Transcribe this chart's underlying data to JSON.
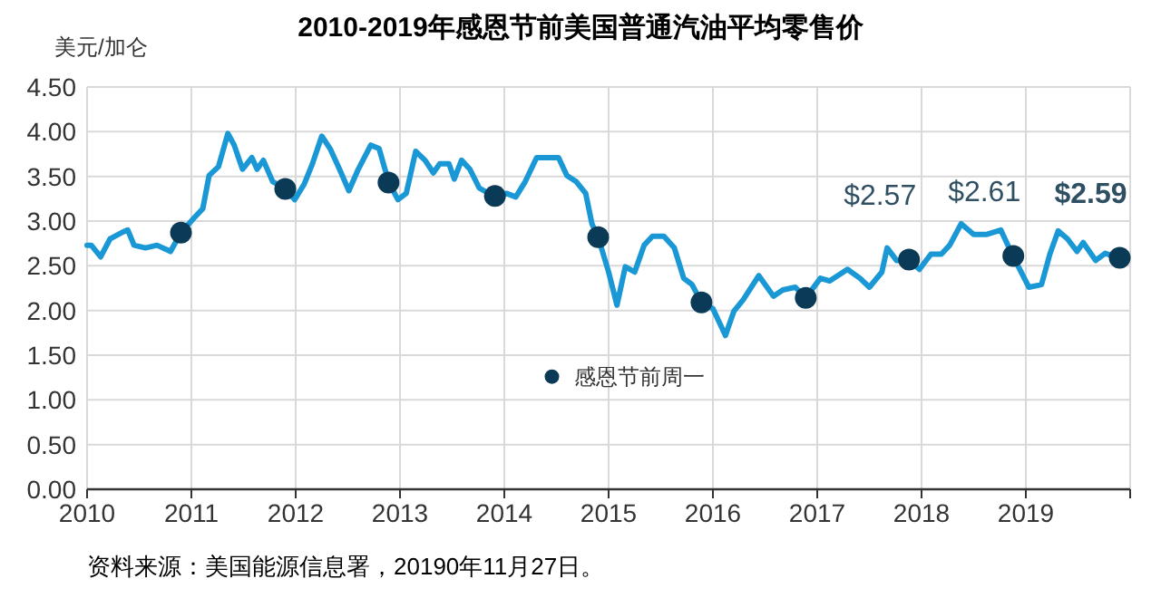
{
  "chart_data": {
    "type": "line",
    "title": "2010-2019年感恩节前美国普通汽油平均零售价",
    "ylabel": "美元/加仑",
    "annotations": [
      "资料来源：美国能源信息署，20190年11月27日。"
    ],
    "xlim": [
      2010,
      2020
    ],
    "xticks": [
      2010,
      2011,
      2012,
      2013,
      2014,
      2015,
      2016,
      2017,
      2018,
      2019,
      {
        "value": 2020,
        "label": null
      }
    ],
    "ylim": [
      0,
      4.5
    ],
    "yticks": [
      {
        "value": 0,
        "label": "0.00"
      },
      {
        "value": 0.5,
        "label": "0.50"
      },
      {
        "value": 1,
        "label": "1.00"
      },
      {
        "value": 1.5,
        "label": "1.50"
      },
      {
        "value": 2,
        "label": "2.00"
      },
      {
        "value": 2.5,
        "label": "2.50"
      },
      {
        "value": 3,
        "label": "3.00"
      },
      {
        "value": 3.5,
        "label": "3.50"
      },
      {
        "value": 4,
        "label": "4.00"
      },
      {
        "value": 4.5,
        "label": "4.50"
      }
    ],
    "grid": true,
    "legend": "bottom",
    "series": [
      {
        "color": "#1a98d5",
        "x": [
          2010.0,
          2010.04,
          2010.13,
          2010.22,
          2010.33,
          2010.39,
          2010.45,
          2010.56,
          2010.67,
          2010.8,
          2010.9,
          2011.03,
          2011.11,
          2011.17,
          2011.26,
          2011.35,
          2011.41,
          2011.49,
          2011.58,
          2011.63,
          2011.69,
          2011.78,
          2011.9,
          2011.99,
          2012.08,
          2012.16,
          2012.25,
          2012.33,
          2012.42,
          2012.51,
          2012.6,
          2012.72,
          2012.8,
          2012.89,
          2012.98,
          2013.06,
          2013.15,
          2013.24,
          2013.32,
          2013.38,
          2013.47,
          2013.52,
          2013.59,
          2013.67,
          2013.76,
          2013.91,
          2014.02,
          2014.11,
          2014.2,
          2014.31,
          2014.43,
          2014.52,
          2014.6,
          2014.69,
          2014.78,
          2014.84,
          2014.9,
          2015.0,
          2015.08,
          2015.16,
          2015.25,
          2015.34,
          2015.42,
          2015.53,
          2015.63,
          2015.72,
          2015.8,
          2015.89,
          2016.0,
          2016.12,
          2016.2,
          2016.29,
          2016.44,
          2016.58,
          2016.67,
          2016.79,
          2016.89,
          2017.03,
          2017.12,
          2017.29,
          2017.41,
          2017.5,
          2017.62,
          2017.67,
          2017.76,
          2017.88,
          2017.98,
          2018.09,
          2018.19,
          2018.27,
          2018.38,
          2018.5,
          2018.62,
          2018.76,
          2018.88,
          2019.03,
          2019.15,
          2019.23,
          2019.31,
          2019.4,
          2019.49,
          2019.55,
          2019.67,
          2019.76,
          2019.9
        ],
        "values": [
          2.73,
          2.73,
          2.6,
          2.8,
          2.87,
          2.9,
          2.73,
          2.7,
          2.73,
          2.66,
          2.87,
          3.04,
          3.14,
          3.51,
          3.61,
          3.98,
          3.85,
          3.58,
          3.71,
          3.58,
          3.68,
          3.44,
          3.37,
          3.24,
          3.41,
          3.64,
          3.95,
          3.81,
          3.58,
          3.34,
          3.58,
          3.85,
          3.81,
          3.44,
          3.24,
          3.31,
          3.78,
          3.68,
          3.54,
          3.64,
          3.64,
          3.47,
          3.68,
          3.58,
          3.37,
          3.27,
          3.31,
          3.27,
          3.44,
          3.71,
          3.71,
          3.71,
          3.51,
          3.44,
          3.31,
          2.97,
          2.82,
          2.43,
          2.06,
          2.49,
          2.43,
          2.73,
          2.83,
          2.83,
          2.7,
          2.36,
          2.29,
          2.09,
          2.02,
          1.72,
          1.99,
          2.12,
          2.39,
          2.16,
          2.23,
          2.26,
          2.14,
          2.36,
          2.33,
          2.46,
          2.36,
          2.26,
          2.43,
          2.7,
          2.56,
          2.56,
          2.46,
          2.63,
          2.63,
          2.73,
          2.97,
          2.85,
          2.85,
          2.9,
          2.6,
          2.26,
          2.29,
          2.63,
          2.89,
          2.8,
          2.66,
          2.76,
          2.56,
          2.64,
          2.58
        ]
      },
      {
        "type": "scatter",
        "name": "感恩节前周一",
        "color": "#0b3a57",
        "marker": "circle",
        "x": [
          2010.9,
          2011.9,
          2012.89,
          2013.91,
          2014.9,
          2015.89,
          2016.89,
          2017.88,
          2018.88,
          2019.9
        ],
        "values": [
          2.87,
          3.36,
          3.43,
          3.28,
          2.82,
          2.09,
          2.14,
          2.57,
          2.61,
          2.59
        ],
        "value_labels": [
          null,
          null,
          null,
          null,
          null,
          null,
          null,
          "$2.57",
          "$2.61",
          "$2.59"
        ]
      }
    ]
  }
}
